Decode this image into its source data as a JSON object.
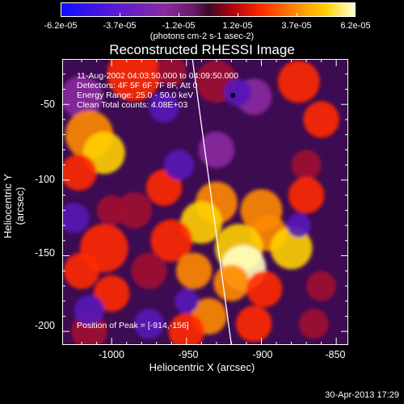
{
  "colorbar": {
    "ticks": [
      "-6.2e-05",
      "-3.7e-05",
      "-1.2e-05",
      "1.2e-05",
      "3.7e-05",
      "6.2e-05"
    ],
    "units": "(photons cm-2 s-1 asec-2)"
  },
  "chart_data": {
    "type": "heatmap",
    "title": "Reconstructed RHESSI Image",
    "xlabel": "Heliocentric X (arcsec)",
    "ylabel": "Heliocentric Y (arcsec)",
    "x_ticks": [
      "-1000",
      "-950",
      "-900",
      "-850"
    ],
    "y_ticks": [
      "-50",
      "-100",
      "-150",
      "-200"
    ],
    "xlim": [
      -1033,
      -842
    ],
    "ylim": [
      -209,
      -20
    ],
    "clim": [
      -6.2e-05,
      6.2e-05
    ],
    "annotations": {
      "time": "11-Aug-2002 04:03:50.000 to 04:09:50.000",
      "detectors": "Detectors: 4F 5F 6F 7F 8F, Att 0",
      "energy": "Energy Range: 25.0 - 50.0 keV",
      "clean": "Clean    Total counts: 4.08E+03",
      "peak": "Position of Peak = [-914,-156]"
    },
    "peak_position": [
      -914,
      -156
    ],
    "limb_line": [
      [
        -946,
        -20
      ],
      [
        -920,
        -209
      ]
    ],
    "marker": [
      -919,
      -44
    ]
  },
  "datestamp": "30-Apr-2013 17:29"
}
